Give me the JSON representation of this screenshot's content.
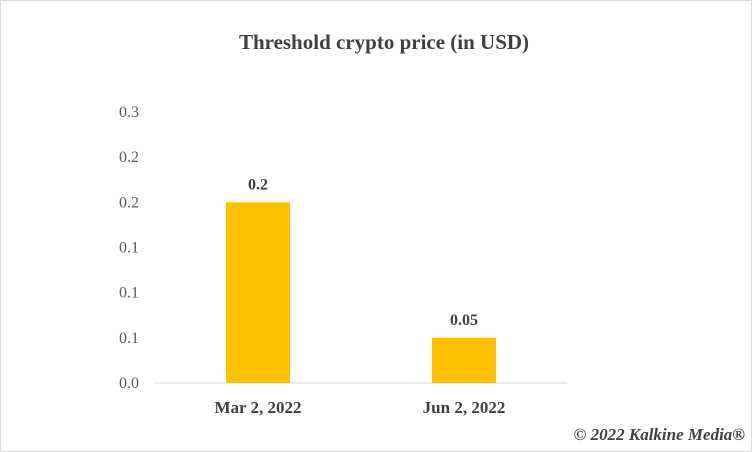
{
  "chart_data": {
    "type": "bar",
    "title": "Threshold crypto price (in USD)",
    "categories": [
      "Mar 2, 2022",
      "Jun 2, 2022"
    ],
    "values": [
      0.2,
      0.05
    ],
    "data_labels": [
      "0.2",
      "0.05"
    ],
    "ylim": [
      0,
      0.3
    ],
    "y_ticks": [
      0,
      0.05,
      0.1,
      0.15,
      0.2,
      0.25,
      0.3
    ],
    "y_tick_labels": [
      "0.0",
      "0.1",
      "0.1",
      "0.1",
      "0.2",
      "0.2",
      "0.3"
    ],
    "bar_color": "#FFC000",
    "grid": false,
    "legend": "none",
    "xlabel": "",
    "ylabel": ""
  },
  "watermark": "© 2022 Kalkine Media®"
}
